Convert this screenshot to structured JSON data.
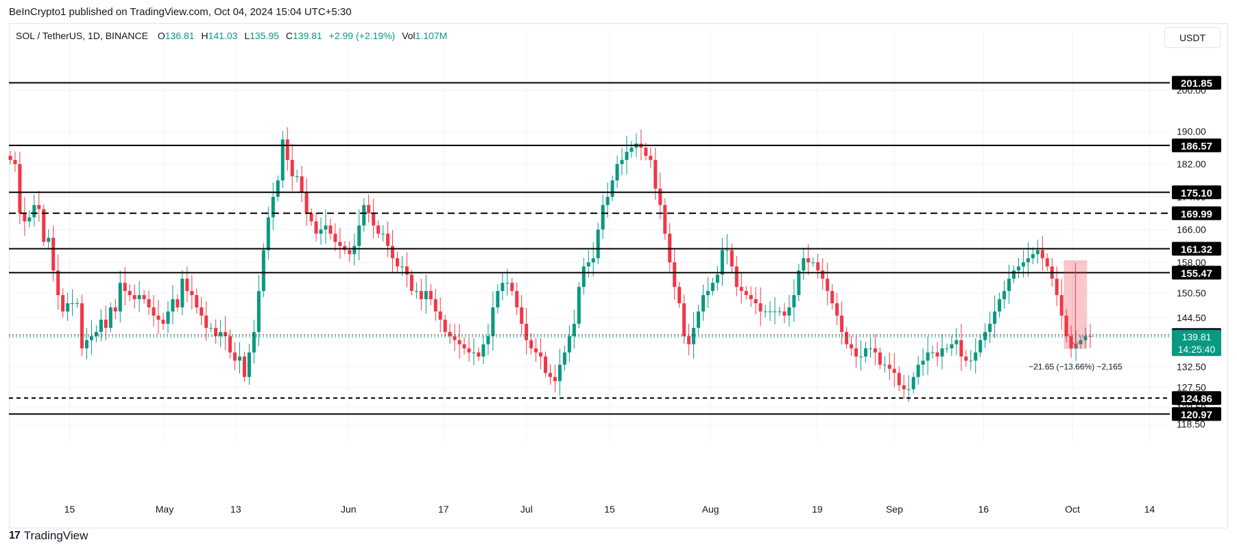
{
  "caption": "BeInCrypto1 published on TradingView.com, Oct 04, 2024 15:04 UTC+5:30",
  "legend": {
    "symbol": "SOL / TetherUS, 1D, BINANCE",
    "open_label": "O",
    "open": "136.81",
    "high_label": "H",
    "high": "141.03",
    "low_label": "L",
    "low": "135.95",
    "close_label": "C",
    "close": "139.81",
    "change": "+2.99 (+2.19%)",
    "vol_label": "Vol",
    "vol": "1.107M"
  },
  "currency": "USDT",
  "footer": {
    "logo": "17",
    "brand": "TradingView"
  },
  "colors": {
    "up": "#089981",
    "down": "#f23645",
    "level_label_bg": "#000000",
    "grid": "#f0f3fa"
  },
  "chart_data": {
    "type": "candlestick",
    "symbol": "SOL / TetherUS",
    "interval": "1D",
    "exchange": "BINANCE",
    "ylim": [
      116.5,
      210
    ],
    "y_ticks": [
      118.5,
      122.5,
      127.5,
      132.5,
      138.5,
      144.5,
      150.5,
      158.0,
      166.0,
      174.0,
      182.0,
      190.0,
      200.0
    ],
    "x_ticks": [
      {
        "label": "15",
        "date": "2024-04-15"
      },
      {
        "label": "May",
        "date": "2024-05-01"
      },
      {
        "label": "13",
        "date": "2024-05-13"
      },
      {
        "label": "Jun",
        "date": "2024-06-01"
      },
      {
        "label": "17",
        "date": "2024-06-17"
      },
      {
        "label": "Jul",
        "date": "2024-07-01"
      },
      {
        "label": "15",
        "date": "2024-07-15"
      },
      {
        "label": "Aug",
        "date": "2024-08-01"
      },
      {
        "label": "19",
        "date": "2024-08-19"
      },
      {
        "label": "Sep",
        "date": "2024-09-01"
      },
      {
        "label": "16",
        "date": "2024-09-16"
      },
      {
        "label": "Oct",
        "date": "2024-10-01"
      },
      {
        "label": "14",
        "date": "2024-10-14"
      }
    ],
    "date_range": [
      "2024-04-05",
      "2024-10-04"
    ],
    "candle_closes": [
      183,
      182,
      170,
      168,
      169,
      172,
      171,
      163,
      164,
      156,
      150,
      146,
      148,
      148,
      148,
      137,
      139,
      140,
      141,
      144,
      142,
      147,
      146,
      153,
      151,
      150,
      149,
      150,
      149,
      147,
      145,
      144,
      143,
      146,
      149,
      147,
      154,
      151,
      150,
      147,
      145,
      142,
      142,
      140,
      141,
      140,
      136,
      134,
      135,
      130,
      136,
      141,
      151,
      161,
      169,
      174,
      178,
      188,
      183,
      179,
      179,
      175,
      170,
      168,
      165,
      166,
      167,
      165,
      163,
      162,
      161,
      160,
      162,
      167,
      172,
      170,
      167,
      165,
      165,
      162,
      159,
      157,
      157,
      155,
      151,
      151,
      149,
      151,
      149,
      146,
      144,
      141,
      140,
      139,
      138,
      137,
      136,
      136,
      135,
      138,
      140,
      147,
      151,
      153,
      153,
      151,
      147,
      143,
      139,
      137,
      136,
      135,
      131,
      130,
      129,
      133,
      136,
      140,
      143,
      152,
      157,
      158,
      159,
      166,
      172,
      174,
      178,
      182,
      183,
      185,
      186,
      187,
      186,
      184,
      183,
      176,
      172,
      165,
      158,
      152,
      148,
      140,
      138,
      142,
      146,
      150,
      151,
      153,
      155,
      161,
      161,
      157,
      152,
      151,
      150,
      149,
      148,
      146,
      146,
      146,
      146,
      146,
      145,
      147,
      150,
      156,
      159,
      158,
      158,
      156,
      154,
      151,
      148,
      145,
      141,
      138,
      137,
      135,
      135,
      137,
      137,
      136,
      133,
      133,
      132,
      131,
      128,
      127,
      127,
      130,
      133,
      134,
      136,
      136,
      135,
      137,
      137,
      138,
      139,
      135,
      134,
      134,
      136,
      139,
      141,
      143,
      146,
      149,
      151,
      154,
      156,
      157,
      158,
      159,
      160,
      161,
      159,
      157,
      154,
      150,
      145,
      140,
      137,
      138,
      139,
      140,
      139.81
    ],
    "levels": [
      {
        "value": 201.85,
        "label": "201.85",
        "style": "solid"
      },
      {
        "value": 186.57,
        "label": "186.57",
        "style": "solid"
      },
      {
        "value": 175.1,
        "label": "175.10",
        "style": "solid"
      },
      {
        "value": 169.99,
        "label": "169.99",
        "style": "dashed"
      },
      {
        "value": 161.32,
        "label": "161.32",
        "style": "solid"
      },
      {
        "value": 155.47,
        "label": "155.47",
        "style": "solid"
      },
      {
        "value": 124.86,
        "label": "124.86",
        "style": "dashed"
      },
      {
        "value": 120.97,
        "label": "120.97",
        "style": "solid"
      }
    ],
    "marked_prices": [
      {
        "value": 140.27,
        "label": "140.27",
        "bg": "#131722"
      },
      {
        "value": 139.81,
        "label": "139.81",
        "bg": "#089981",
        "countdown": "14:25:40"
      }
    ],
    "measurement": {
      "from_date": "2024-09-30",
      "to_date": "2024-10-03",
      "high": 158.5,
      "low": 136.85,
      "label": "−21.65 (−13.66%) −2,165"
    }
  }
}
